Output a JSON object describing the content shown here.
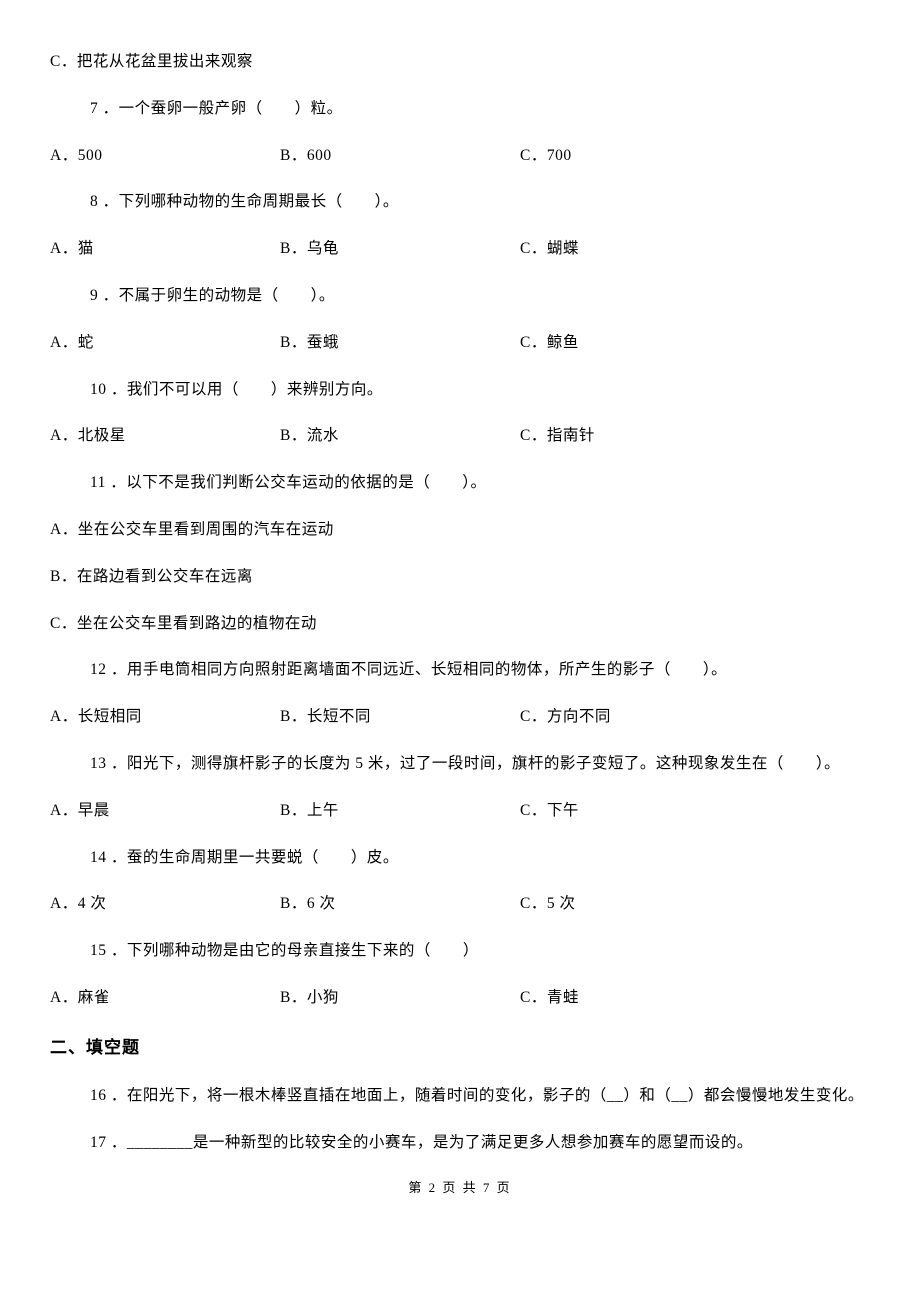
{
  "q6": {
    "optC": "C．把花从花盆里拔出来观察"
  },
  "q7": {
    "stem": "7 ．一个蚕卵一般产卵（　　）粒。",
    "A": "A．500",
    "B": "B．600",
    "C": "C．700"
  },
  "q8": {
    "stem": "8 ．下列哪种动物的生命周期最长（　　）。",
    "A": "A．猫",
    "B": "B．乌龟",
    "C": "C．蝴蝶"
  },
  "q9": {
    "stem": "9 ．不属于卵生的动物是（　　）。",
    "A": "A．蛇",
    "B": "B．蚕蛾",
    "C": "C．鲸鱼"
  },
  "q10": {
    "stem": "10 ．我们不可以用（　　）来辨别方向。",
    "A": "A．北极星",
    "B": "B．流水",
    "C": "C．指南针"
  },
  "q11": {
    "stem": "11 ．以下不是我们判断公交车运动的依据的是（　　）。",
    "A": "A．坐在公交车里看到周围的汽车在运动",
    "B": "B．在路边看到公交车在远离",
    "C": "C．坐在公交车里看到路边的植物在动"
  },
  "q12": {
    "stem": "12 ．用手电筒相同方向照射距离墙面不同远近、长短相同的物体，所产生的影子（　　）。",
    "A": "A．长短相同",
    "B": "B．长短不同",
    "C": "C．方向不同"
  },
  "q13": {
    "stem": "13 ．阳光下，测得旗杆影子的长度为 5 米，过了一段时间，旗杆的影子变短了。这种现象发生在（　　）。",
    "A": "A．早晨",
    "B": "B．上午",
    "C": "C．下午"
  },
  "q14": {
    "stem": "14 ．蚕的生命周期里一共要蜕（　　）皮。",
    "A": "A．4 次",
    "B": "B．6 次",
    "C": "C．5 次"
  },
  "q15": {
    "stem": "15 ．下列哪种动物是由它的母亲直接生下来的（　　）",
    "A": "A．麻雀",
    "B": "B．小狗",
    "C": "C．青蛙"
  },
  "section2": "二、填空题",
  "q16": "16 ．在阳光下，将一根木棒竖直插在地面上，随着时间的变化，影子的（__）和（__）都会慢慢地发生变化。",
  "q17": "17 ．________是一种新型的比较安全的小赛车，是为了满足更多人想参加赛车的愿望而设的。",
  "footer": "第 2 页 共 7 页"
}
